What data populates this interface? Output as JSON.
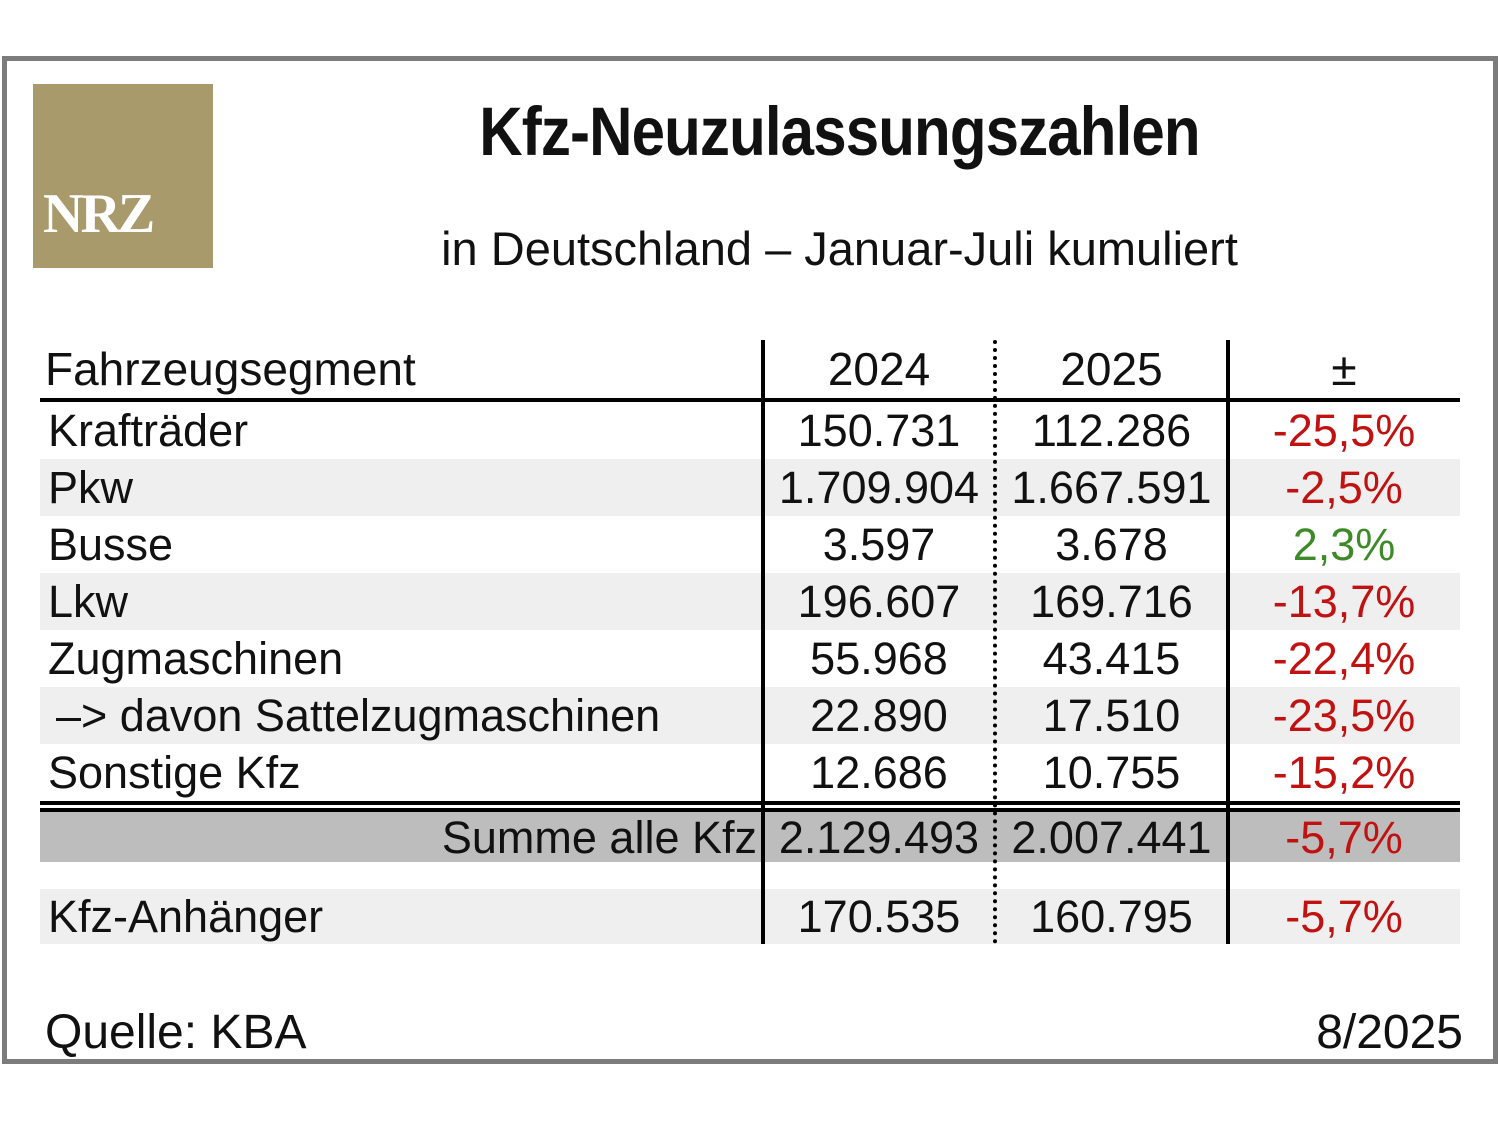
{
  "logo": {
    "text": "NRZ"
  },
  "header": {
    "title": "Kfz-Neuzulassungszahlen",
    "subtitle": "in Deutschland – Januar-Juli kumuliert"
  },
  "table": {
    "columns": [
      "Fahrzeugsegment",
      "2024",
      "2025",
      "±"
    ],
    "rows": [
      {
        "segment": "Krafträder",
        "y2024": "150.731",
        "y2025": "112.286",
        "change": "-25,5%"
      },
      {
        "segment": "Pkw",
        "y2024": "1.709.904",
        "y2025": "1.667.591",
        "change": "-2,5%"
      },
      {
        "segment": "Busse",
        "y2024": "3.597",
        "y2025": "3.678",
        "change": "2,3%"
      },
      {
        "segment": "Lkw",
        "y2024": "196.607",
        "y2025": "169.716",
        "change": "-13,7%"
      },
      {
        "segment": "Zugmaschinen",
        "y2024": "55.968",
        "y2025": "43.415",
        "change": "-22,4%"
      },
      {
        "segment": "–> davon Sattelzugmaschinen",
        "y2024": "22.890",
        "y2025": "17.510",
        "change": "-23,5%"
      },
      {
        "segment": "Sonstige Kfz",
        "y2024": "12.686",
        "y2025": "10.755",
        "change": "-15,2%"
      }
    ],
    "summary": {
      "segment": "Summe alle Kfz",
      "y2024": "2.129.493",
      "y2025": "2.007.441",
      "change": "-5,7%"
    },
    "trailer": {
      "segment": "Kfz-Anhänger",
      "y2024": "170.535",
      "y2025": "160.795",
      "change": "-5,7%"
    }
  },
  "footer": {
    "source": "Quelle: KBA",
    "issue": "8/2025"
  },
  "colors": {
    "negative": "#c11212",
    "positive": "#3e8a28",
    "row_alt": "#efefef",
    "summary_bg": "#bdbdbd",
    "logo_gold": "#a89a6b",
    "frame_gray": "#7c7c7c"
  },
  "chart_data": {
    "type": "table",
    "title": "Kfz-Neuzulassungszahlen",
    "subtitle": "in Deutschland – Januar-Juli kumuliert",
    "columns": [
      "Fahrzeugsegment",
      "2024",
      "2025",
      "±"
    ],
    "rows": [
      [
        "Krafträder",
        150731,
        112286,
        "-25,5%"
      ],
      [
        "Pkw",
        1709904,
        1667591,
        "-2,5%"
      ],
      [
        "Busse",
        3597,
        3678,
        "2,3%"
      ],
      [
        "Lkw",
        196607,
        169716,
        "-13,7%"
      ],
      [
        "Zugmaschinen",
        55968,
        43415,
        "-22,4%"
      ],
      [
        "–> davon Sattelzugmaschinen",
        22890,
        17510,
        "-23,5%"
      ],
      [
        "Sonstige Kfz",
        12686,
        10755,
        "-15,2%"
      ],
      [
        "Summe alle Kfz",
        2129493,
        2007441,
        "-5,7%"
      ],
      [
        "Kfz-Anhänger",
        170535,
        160795,
        "-5,7%"
      ]
    ],
    "source": "Quelle: KBA",
    "issue": "8/2025"
  }
}
